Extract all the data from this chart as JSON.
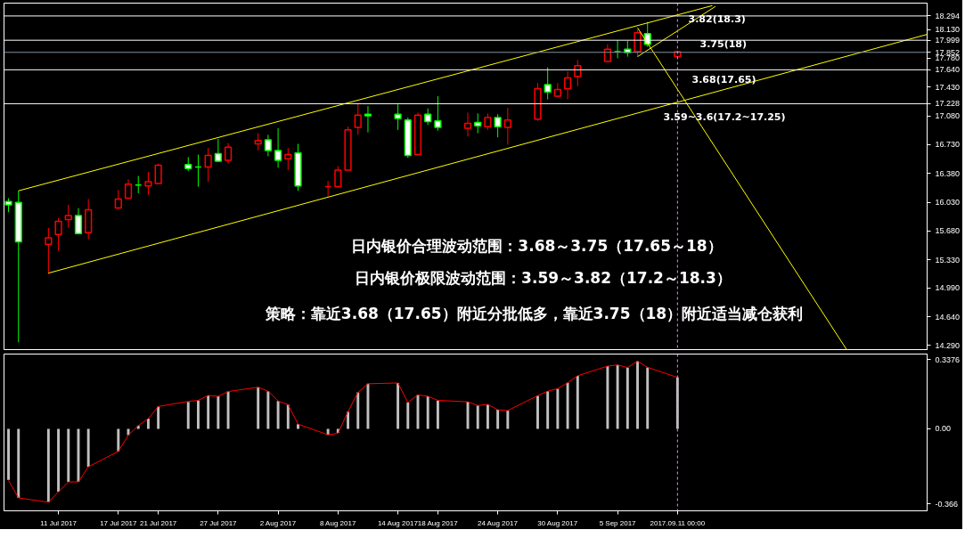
{
  "chart_data": [
    {
      "type": "candlestick",
      "x": [
        "2017-07-06",
        "2017-07-07",
        "2017-07-10",
        "2017-07-11",
        "2017-07-12",
        "2017-07-13",
        "2017-07-14",
        "2017-07-17",
        "2017-07-18",
        "2017-07-19",
        "2017-07-20",
        "2017-07-21",
        "2017-07-24",
        "2017-07-25",
        "2017-07-26",
        "2017-07-27",
        "2017-07-28",
        "2017-07-31",
        "2017-08-01",
        "2017-08-02",
        "2017-08-03",
        "2017-08-04",
        "2017-08-07",
        "2017-08-08",
        "2017-08-09",
        "2017-08-10",
        "2017-08-11",
        "2017-08-14",
        "2017-08-15",
        "2017-08-16",
        "2017-08-17",
        "2017-08-18",
        "2017-08-21",
        "2017-08-22",
        "2017-08-23",
        "2017-08-24",
        "2017-08-25",
        "2017-08-28",
        "2017-08-29",
        "2017-08-30",
        "2017-08-31",
        "2017-09-01",
        "2017-09-04",
        "2017-09-05",
        "2017-09-06",
        "2017-09-07",
        "2017-09-08",
        "2017-09-11"
      ],
      "ohlc": [
        [
          16.04,
          16.08,
          15.91,
          16.0
        ],
        [
          16.03,
          16.17,
          14.33,
          15.55
        ],
        [
          15.52,
          15.72,
          15.16,
          15.6
        ],
        [
          15.64,
          15.84,
          15.44,
          15.8
        ],
        [
          15.82,
          16.0,
          15.72,
          15.87
        ],
        [
          15.87,
          15.96,
          15.65,
          15.65
        ],
        [
          15.66,
          16.07,
          15.58,
          15.94
        ],
        [
          15.96,
          16.18,
          15.95,
          16.07
        ],
        [
          16.08,
          16.31,
          16.08,
          16.25
        ],
        [
          16.24,
          16.35,
          16.14,
          16.24
        ],
        [
          16.23,
          16.4,
          16.12,
          16.28
        ],
        [
          16.26,
          16.5,
          16.26,
          16.48
        ],
        [
          16.49,
          16.58,
          16.41,
          16.44
        ],
        [
          16.46,
          16.61,
          16.22,
          16.46
        ],
        [
          16.46,
          16.69,
          16.28,
          16.6
        ],
        [
          16.62,
          16.8,
          16.52,
          16.53
        ],
        [
          16.54,
          16.75,
          16.5,
          16.7
        ],
        [
          16.74,
          16.87,
          16.66,
          16.78
        ],
        [
          16.79,
          16.85,
          16.59,
          16.66
        ],
        [
          16.66,
          16.93,
          16.45,
          16.54
        ],
        [
          16.56,
          16.69,
          16.42,
          16.61
        ],
        [
          16.63,
          16.74,
          16.17,
          16.23
        ],
        [
          16.22,
          16.29,
          16.1,
          16.22
        ],
        [
          16.22,
          16.47,
          16.21,
          16.42
        ],
        [
          16.42,
          16.95,
          16.42,
          16.91
        ],
        [
          16.94,
          17.23,
          16.85,
          17.09
        ],
        [
          17.1,
          17.2,
          16.88,
          17.08
        ],
        [
          17.1,
          17.22,
          16.91,
          17.05
        ],
        [
          17.03,
          17.06,
          16.57,
          16.6
        ],
        [
          16.61,
          17.12,
          16.61,
          17.09
        ],
        [
          17.1,
          17.17,
          16.97,
          17.01
        ],
        [
          17.02,
          17.32,
          16.9,
          16.94
        ],
        [
          16.93,
          17.12,
          16.83,
          16.99
        ],
        [
          17.0,
          17.11,
          16.87,
          16.96
        ],
        [
          16.95,
          17.11,
          16.91,
          17.06
        ],
        [
          17.06,
          17.1,
          16.82,
          16.95
        ],
        [
          16.94,
          17.18,
          16.73,
          17.03
        ],
        [
          17.04,
          17.48,
          17.02,
          17.41
        ],
        [
          17.46,
          17.67,
          17.28,
          17.37
        ],
        [
          17.32,
          17.48,
          17.31,
          17.4
        ],
        [
          17.41,
          17.62,
          17.28,
          17.54
        ],
        [
          17.56,
          17.76,
          17.44,
          17.69
        ],
        [
          17.74,
          17.95,
          17.74,
          17.89
        ],
        [
          17.86,
          18.0,
          17.78,
          17.86
        ],
        [
          17.89,
          17.99,
          17.8,
          17.85
        ],
        [
          17.86,
          18.13,
          17.8,
          18.09
        ],
        [
          18.08,
          18.22,
          17.92,
          17.95
        ],
        [
          17.8,
          17.87,
          17.79,
          17.86
        ]
      ],
      "colors": [
        "#00ff00",
        "#00ff00",
        "#ff0000",
        "#ff0000",
        "#ff0000",
        "#00ff00",
        "#ff0000",
        "#ff0000",
        "#ff0000",
        "#00ff00",
        "#ff0000",
        "#ff0000",
        "#00ff00",
        "#00ff00",
        "#ff0000",
        "#00ff00",
        "#ff0000",
        "#ff0000",
        "#00ff00",
        "#00ff00",
        "#ff0000",
        "#00ff00",
        "#ff0000",
        "#ff0000",
        "#ff0000",
        "#ff0000",
        "#00ff00",
        "#00ff00",
        "#00ff00",
        "#ff0000",
        "#00ff00",
        "#00ff00",
        "#ff0000",
        "#00ff00",
        "#ff0000",
        "#00ff00",
        "#ff0000",
        "#ff0000",
        "#00ff00",
        "#ff0000",
        "#ff0000",
        "#ff0000",
        "#ff0000",
        "#00ff00",
        "#00ff00",
        "#ff0000",
        "#00ff00",
        "#ff0000"
      ],
      "series": [
        {
          "type": "line",
          "color": "#ffff00",
          "x": [
            "2017-07-07",
            "2017-09-14T12:00"
          ],
          "values": [
            16.17,
            18.42
          ]
        },
        {
          "type": "line",
          "color": "#ffff00",
          "x": [
            "2017-07-10",
            "2017-10-06"
          ],
          "values": [
            15.17,
            18.07
          ]
        },
        {
          "type": "line",
          "color": "#ffff00",
          "x": [
            "2017-09-07",
            "2017-09-28"
          ],
          "values": [
            18.15,
            14.23
          ]
        },
        {
          "type": "line",
          "color": "#ffff00",
          "x": [
            "2017-09-07",
            "2017-09-14T19:12"
          ],
          "values": [
            17.8,
            18.41
          ]
        }
      ],
      "xlim": [
        "2017-07-05T13:12",
        "2017-10-06"
      ],
      "ylim": [
        14.23,
        18.45
      ],
      "yticks": [
        {
          "value": 18.13,
          "label": "18.130"
        },
        {
          "value": 17.78,
          "label": "17.780"
        },
        {
          "value": 17.43,
          "label": "17.430"
        },
        {
          "value": 17.08,
          "label": "17.080"
        },
        {
          "value": 16.73,
          "label": "16.730"
        },
        {
          "value": 16.38,
          "label": "16.380"
        },
        {
          "value": 16.03,
          "label": "16.030"
        },
        {
          "value": 15.68,
          "label": "15.680"
        },
        {
          "value": 15.33,
          "label": "15.330"
        },
        {
          "value": 14.99,
          "label": "14.990"
        },
        {
          "value": 14.64,
          "label": "14.640"
        },
        {
          "value": 14.29,
          "label": "14.290"
        }
      ],
      "tick_labels": "y",
      "ref_lines": [
        {
          "axis": "y",
          "value": 18.294,
          "label": "18.294",
          "color": "#ffffff"
        },
        {
          "axis": "y",
          "value": 17.999,
          "label": "17.999",
          "color": "#ffffff"
        },
        {
          "axis": "y",
          "value": 17.852,
          "label": "17.852",
          "color": "#8090a0"
        },
        {
          "axis": "y",
          "value": 17.64,
          "label": "17.640",
          "color": "#ffffff"
        },
        {
          "axis": "y",
          "value": 17.228,
          "label": "17.228",
          "color": "#ffffff"
        },
        {
          "axis": "x",
          "value": "2017-09-11",
          "color": "#ff80ff",
          "line_style": "dashed"
        }
      ],
      "annotations": [
        "3.82(18.3)",
        "3.75(18)",
        "3.68(17.65)",
        "3.59~3.6(17.2~17.25)",
        "日内银价合理波动范围：3.68～3.75（17.65～18）",
        "日内银价极限波动范围：3.59～3.82（17.2～18.3）",
        "策略：靠近3.68（17.65）附近分批低多，靠近3.75（18）附近适当减仓获利"
      ]
    },
    {
      "type": "bar",
      "x": [
        "2017-07-06",
        "2017-07-07",
        "2017-07-10",
        "2017-07-11",
        "2017-07-12",
        "2017-07-13",
        "2017-07-14",
        "2017-07-17",
        "2017-07-18",
        "2017-07-19",
        "2017-07-20",
        "2017-07-21",
        "2017-07-24",
        "2017-07-25",
        "2017-07-26",
        "2017-07-27",
        "2017-07-28",
        "2017-07-31",
        "2017-08-01",
        "2017-08-02",
        "2017-08-03",
        "2017-08-04",
        "2017-08-07",
        "2017-08-08",
        "2017-08-09",
        "2017-08-10",
        "2017-08-11",
        "2017-08-14",
        "2017-08-15",
        "2017-08-16",
        "2017-08-17",
        "2017-08-18",
        "2017-08-21",
        "2017-08-22",
        "2017-08-23",
        "2017-08-24",
        "2017-08-25",
        "2017-08-28",
        "2017-08-29",
        "2017-08-30",
        "2017-08-31",
        "2017-09-01",
        "2017-09-04",
        "2017-09-05",
        "2017-09-06",
        "2017-09-07",
        "2017-09-08",
        "2017-09-11"
      ],
      "series": [
        {
          "type": "bar",
          "color": "#c0c0c0",
          "values": [
            -0.249,
            -0.337,
            -0.358,
            -0.307,
            -0.259,
            -0.259,
            -0.185,
            -0.11,
            -0.031,
            0.016,
            0.05,
            0.109,
            0.131,
            0.139,
            0.163,
            0.159,
            0.182,
            0.203,
            0.184,
            0.136,
            0.118,
            0.023,
            -0.029,
            -0.02,
            0.084,
            0.178,
            0.22,
            0.224,
            0.128,
            0.166,
            0.159,
            0.139,
            0.132,
            0.114,
            0.119,
            0.093,
            0.089,
            0.162,
            0.184,
            0.196,
            0.225,
            0.259,
            0.306,
            0.312,
            0.299,
            0.33,
            0.3,
            0.251
          ]
        },
        {
          "type": "line",
          "color": "#ff0000",
          "values": [
            -0.252,
            -0.337,
            -0.358,
            -0.307,
            -0.259,
            -0.259,
            -0.185,
            -0.11,
            -0.031,
            0.016,
            0.05,
            0.109,
            0.134,
            0.139,
            0.163,
            0.159,
            0.182,
            0.203,
            0.184,
            0.136,
            0.118,
            0.023,
            -0.029,
            -0.022,
            0.084,
            0.178,
            0.22,
            0.224,
            0.128,
            0.166,
            0.159,
            0.139,
            0.132,
            0.114,
            0.119,
            0.093,
            0.089,
            0.162,
            0.184,
            0.196,
            0.225,
            0.259,
            0.306,
            0.312,
            0.299,
            0.33,
            0.3,
            0.251
          ]
        }
      ],
      "xlim": [
        "2017-07-05T13:12",
        "2017-10-06"
      ],
      "ylim": [
        -0.4,
        0.365
      ],
      "xticks": [
        {
          "value": "2017-07-11",
          "label": "11 Jul 2017"
        },
        {
          "value": "2017-07-17",
          "label": "17 Jul 2017"
        },
        {
          "value": "2017-07-21",
          "label": "21 Jul 2017"
        },
        {
          "value": "2017-07-27",
          "label": "27 Jul 2017"
        },
        {
          "value": "2017-08-02",
          "label": "2 Aug 2017"
        },
        {
          "value": "2017-08-08",
          "label": "8 Aug 2017"
        },
        {
          "value": "2017-08-14",
          "label": "14 Aug 2017"
        },
        {
          "value": "2017-08-18",
          "label": "18 Aug 2017"
        },
        {
          "value": "2017-08-24",
          "label": "24 Aug 2017"
        },
        {
          "value": "2017-08-30",
          "label": "30 Aug 2017"
        },
        {
          "value": "2017-09-05",
          "label": "5 Sep 2017"
        }
      ],
      "yticks": [
        0.3376,
        {
          "value": 0,
          "label": "0.00"
        },
        -0.366
      ],
      "ref_lines": [
        {
          "axis": "x",
          "value": "2017-09-11",
          "label": "2017.09.11 00:00",
          "color": "#ff80ff",
          "line_style": "dashed"
        }
      ]
    }
  ]
}
